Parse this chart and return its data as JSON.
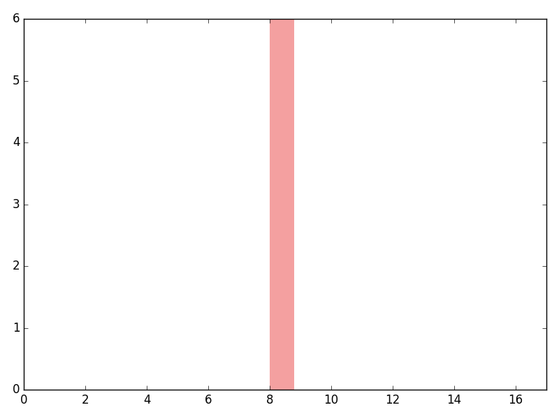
{
  "bar_x_start": 8,
  "bar_x_end": 8.8,
  "bar_y_start": 0,
  "bar_y_end": 6,
  "bar_color": "#f4a0a0",
  "xlim": [
    0,
    17
  ],
  "ylim": [
    0,
    6
  ],
  "xticks": [
    0,
    2,
    4,
    6,
    8,
    10,
    12,
    14,
    16
  ],
  "yticks": [
    0,
    1,
    2,
    3,
    4,
    5,
    6
  ],
  "background_color": "#ffffff",
  "figsize": [
    8.0,
    6.0
  ],
  "dpi": 100
}
